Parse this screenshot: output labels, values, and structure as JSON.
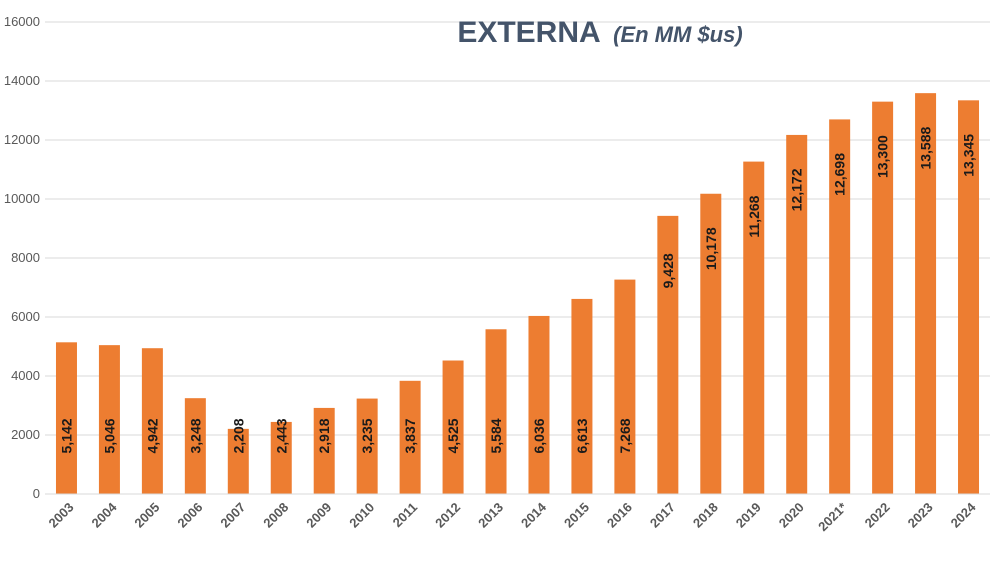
{
  "chart_data": {
    "type": "bar",
    "title": "EXTERNA",
    "subtitle": "(En MM $us)",
    "categories": [
      "2003",
      "2004",
      "2005",
      "2006",
      "2007",
      "2008",
      "2009",
      "2010",
      "2011",
      "2012",
      "2013",
      "2014",
      "2015",
      "2016",
      "2017",
      "2018",
      "2019",
      "2020",
      "2021*",
      "2022",
      "2023",
      "2024"
    ],
    "values": [
      5142,
      5046,
      4942,
      3248,
      2208,
      2443,
      2918,
      3235,
      3837,
      4525,
      5584,
      6036,
      6613,
      7268,
      9428,
      10178,
      11268,
      12172,
      12698,
      13300,
      13588,
      13345
    ],
    "data_labels": [
      "5,142",
      "5,046",
      "4,942",
      "3,248",
      "2,208",
      "2,443",
      "2,918",
      "3,235",
      "3,837",
      "4,525",
      "5,584",
      "6,036",
      "6,613",
      "7,268",
      "9,428",
      "10,178",
      "11,268",
      "12,172",
      "12,698",
      "13,300",
      "13,588",
      "13,345"
    ],
    "ylim": [
      0,
      16000
    ],
    "y_ticks": [
      0,
      2000,
      4000,
      6000,
      8000,
      10000,
      12000,
      14000,
      16000
    ],
    "y_tick_labels": [
      "0",
      "2000",
      "4000",
      "6000",
      "8000",
      "10000",
      "12000",
      "14000",
      "16000"
    ],
    "xlabel": "",
    "ylabel": "",
    "grid": true,
    "legend": "none",
    "colors": {
      "bar": "#ED7D31",
      "title": "#44546A",
      "grid": "#D9D9D9",
      "axis_text": "#595959",
      "label_text": "#1A1A1A"
    }
  }
}
